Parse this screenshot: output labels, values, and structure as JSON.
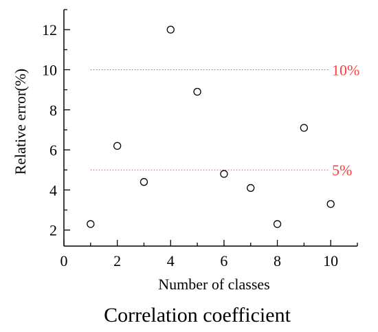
{
  "chart_data": {
    "type": "scatter",
    "title": "",
    "xlabel": "Number of classes",
    "ylabel": "Relative error(%)",
    "caption": "Correlation coefficient",
    "xlim": [
      0,
      11
    ],
    "ylim": [
      1.2,
      13
    ],
    "x_ticks": [
      0,
      2,
      4,
      6,
      8,
      10
    ],
    "y_ticks": [
      2,
      4,
      6,
      8,
      10,
      12
    ],
    "grid": false,
    "marker": "hollow-circle",
    "series": [
      {
        "points": [
          {
            "x": 1,
            "y": 2.3
          },
          {
            "x": 2,
            "y": 6.2
          },
          {
            "x": 3,
            "y": 4.4
          },
          {
            "x": 4,
            "y": 12.0
          },
          {
            "x": 5,
            "y": 8.9
          },
          {
            "x": 6,
            "y": 4.8
          },
          {
            "x": 7,
            "y": 4.1
          },
          {
            "x": 8,
            "y": 2.3
          },
          {
            "x": 9,
            "y": 7.1
          },
          {
            "x": 10,
            "y": 3.3
          }
        ]
      }
    ],
    "reference_lines": [
      {
        "y": 10,
        "x_start": 1,
        "x_end": 11,
        "label": "10%",
        "color": "#ff3b3b",
        "style": "dotted"
      },
      {
        "y": 5,
        "x_start": 1,
        "x_end": 11,
        "label": "5%",
        "color": "#ff3b3b",
        "style": "dotted"
      }
    ]
  }
}
